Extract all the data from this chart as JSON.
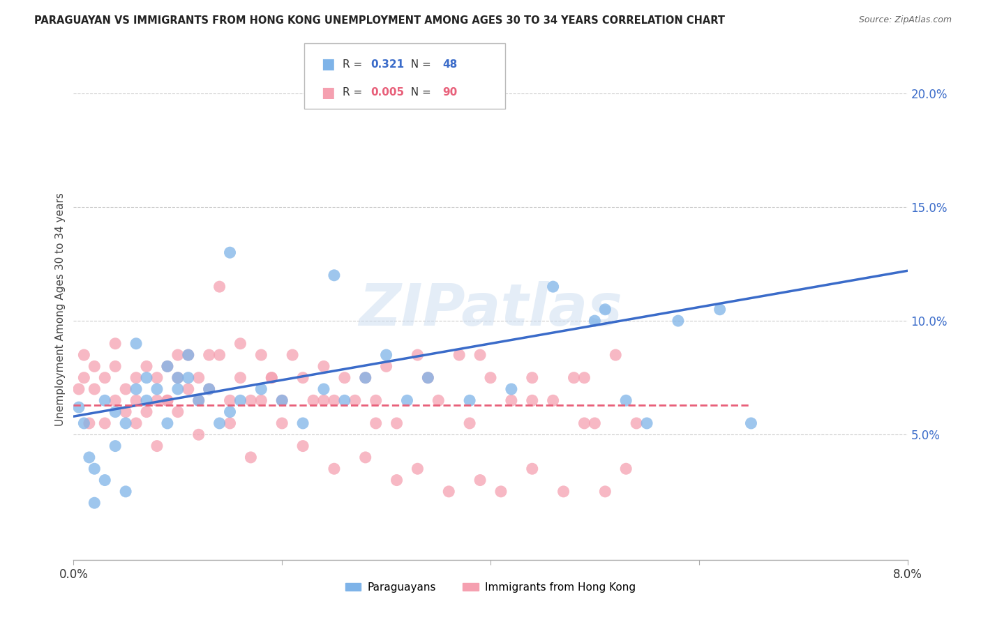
{
  "title": "PARAGUAYAN VS IMMIGRANTS FROM HONG KONG UNEMPLOYMENT AMONG AGES 30 TO 34 YEARS CORRELATION CHART",
  "source": "Source: ZipAtlas.com",
  "ylabel": "Unemployment Among Ages 30 to 34 years",
  "x_min": 0.0,
  "x_max": 0.08,
  "y_min": -0.005,
  "y_max": 0.215,
  "yticks": [
    0.05,
    0.1,
    0.15,
    0.2
  ],
  "ytick_labels": [
    "5.0%",
    "10.0%",
    "15.0%",
    "20.0%"
  ],
  "blue_R": "0.321",
  "blue_N": "48",
  "pink_R": "0.005",
  "pink_N": "90",
  "blue_color": "#7EB3E8",
  "pink_color": "#F5A0B0",
  "blue_line_color": "#3A6BC9",
  "pink_line_color": "#E8607A",
  "watermark": "ZIPatlas",
  "legend_label_blue": "Paraguayans",
  "legend_label_pink": "Immigrants from Hong Kong",
  "blue_scatter_x": [
    0.0005,
    0.001,
    0.0015,
    0.002,
    0.002,
    0.003,
    0.003,
    0.004,
    0.004,
    0.005,
    0.005,
    0.006,
    0.006,
    0.007,
    0.007,
    0.008,
    0.009,
    0.009,
    0.01,
    0.01,
    0.011,
    0.011,
    0.012,
    0.013,
    0.014,
    0.015,
    0.016,
    0.018,
    0.02,
    0.022,
    0.024,
    0.026,
    0.028,
    0.03,
    0.032,
    0.034,
    0.038,
    0.042,
    0.046,
    0.05,
    0.051,
    0.053,
    0.055,
    0.058,
    0.062,
    0.065,
    0.025,
    0.015
  ],
  "blue_scatter_y": [
    0.062,
    0.055,
    0.04,
    0.035,
    0.02,
    0.03,
    0.065,
    0.045,
    0.06,
    0.055,
    0.025,
    0.07,
    0.09,
    0.065,
    0.075,
    0.07,
    0.055,
    0.08,
    0.07,
    0.075,
    0.085,
    0.075,
    0.065,
    0.07,
    0.055,
    0.06,
    0.065,
    0.07,
    0.065,
    0.055,
    0.07,
    0.065,
    0.075,
    0.085,
    0.065,
    0.075,
    0.065,
    0.07,
    0.115,
    0.1,
    0.105,
    0.065,
    0.055,
    0.1,
    0.105,
    0.055,
    0.12,
    0.13
  ],
  "pink_scatter_x": [
    0.0005,
    0.001,
    0.001,
    0.0015,
    0.002,
    0.002,
    0.003,
    0.003,
    0.004,
    0.004,
    0.005,
    0.005,
    0.006,
    0.006,
    0.007,
    0.007,
    0.008,
    0.008,
    0.009,
    0.009,
    0.01,
    0.01,
    0.011,
    0.011,
    0.012,
    0.012,
    0.013,
    0.013,
    0.014,
    0.015,
    0.016,
    0.016,
    0.017,
    0.018,
    0.018,
    0.019,
    0.02,
    0.021,
    0.022,
    0.023,
    0.024,
    0.025,
    0.026,
    0.027,
    0.028,
    0.029,
    0.03,
    0.031,
    0.033,
    0.035,
    0.037,
    0.038,
    0.04,
    0.042,
    0.044,
    0.046,
    0.048,
    0.05,
    0.052,
    0.054,
    0.006,
    0.008,
    0.01,
    0.012,
    0.015,
    0.017,
    0.02,
    0.022,
    0.025,
    0.028,
    0.031,
    0.033,
    0.036,
    0.039,
    0.041,
    0.044,
    0.047,
    0.049,
    0.051,
    0.053,
    0.004,
    0.009,
    0.014,
    0.019,
    0.024,
    0.029,
    0.034,
    0.039,
    0.044,
    0.049
  ],
  "pink_scatter_y": [
    0.07,
    0.075,
    0.085,
    0.055,
    0.07,
    0.08,
    0.055,
    0.075,
    0.065,
    0.08,
    0.06,
    0.07,
    0.065,
    0.075,
    0.06,
    0.08,
    0.065,
    0.075,
    0.065,
    0.08,
    0.06,
    0.075,
    0.07,
    0.085,
    0.065,
    0.075,
    0.07,
    0.085,
    0.085,
    0.065,
    0.075,
    0.09,
    0.065,
    0.085,
    0.065,
    0.075,
    0.065,
    0.085,
    0.075,
    0.065,
    0.08,
    0.065,
    0.075,
    0.065,
    0.075,
    0.065,
    0.08,
    0.055,
    0.085,
    0.065,
    0.085,
    0.055,
    0.075,
    0.065,
    0.075,
    0.065,
    0.075,
    0.055,
    0.085,
    0.055,
    0.055,
    0.045,
    0.085,
    0.05,
    0.055,
    0.04,
    0.055,
    0.045,
    0.035,
    0.04,
    0.03,
    0.035,
    0.025,
    0.03,
    0.025,
    0.035,
    0.025,
    0.055,
    0.025,
    0.035,
    0.09,
    0.065,
    0.115,
    0.075,
    0.065,
    0.055,
    0.075,
    0.085,
    0.065,
    0.075
  ],
  "blue_line_x": [
    0.0,
    0.08
  ],
  "blue_line_y": [
    0.058,
    0.122
  ],
  "pink_line_x": [
    0.0,
    0.065
  ],
  "pink_line_y": [
    0.063,
    0.063
  ],
  "grid_color": "#cccccc",
  "spine_color": "#aaaaaa",
  "background_color": "#ffffff"
}
